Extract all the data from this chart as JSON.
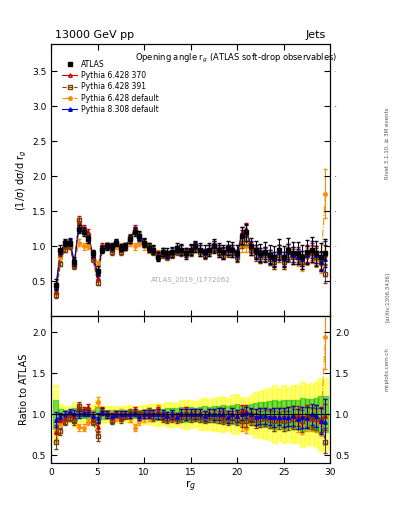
{
  "title_top": "13000 GeV pp",
  "title_right": "Jets",
  "plot_title": "Opening angle r$_g$ (ATLAS soft-drop observables)",
  "xlabel": "r$_g$",
  "ylabel_main": "(1/σ) dσ/d r$_g$",
  "ylabel_ratio": "Ratio to ATLAS",
  "watermark": "ATLAS_2019_I1772062",
  "rivet_text": "Rivet 3.1.10, ≥ 3M events",
  "arxiv_text": "[arXiv:1306.3436]",
  "mcplots_text": "mcplots.cern.ch",
  "x_data": [
    0.5,
    1.0,
    1.5,
    2.0,
    2.5,
    3.0,
    3.5,
    4.0,
    4.5,
    5.0,
    5.5,
    6.0,
    6.5,
    7.0,
    7.5,
    8.0,
    8.5,
    9.0,
    9.5,
    10.0,
    10.5,
    11.0,
    11.5,
    12.0,
    12.5,
    13.0,
    13.5,
    14.0,
    14.5,
    15.0,
    15.5,
    16.0,
    16.5,
    17.0,
    17.5,
    18.0,
    18.5,
    19.0,
    19.5,
    20.0,
    20.5,
    21.0,
    21.5,
    22.0,
    22.5,
    23.0,
    23.5,
    24.0,
    24.5,
    25.0,
    25.5,
    26.0,
    26.5,
    27.0,
    27.5,
    28.0,
    28.5,
    29.0,
    29.5
  ],
  "atlas_y": [
    0.45,
    0.95,
    1.05,
    1.05,
    0.78,
    1.25,
    1.2,
    1.1,
    0.9,
    0.65,
    0.95,
    1.0,
    1.0,
    1.05,
    0.98,
    1.0,
    1.1,
    1.2,
    1.15,
    1.05,
    0.98,
    0.95,
    0.85,
    0.92,
    0.9,
    0.92,
    0.98,
    0.95,
    0.9,
    0.95,
    1.0,
    0.95,
    0.92,
    0.95,
    1.0,
    0.95,
    0.92,
    0.98,
    0.95,
    0.9,
    1.15,
    1.2,
    1.0,
    0.95,
    0.9,
    0.92,
    0.88,
    0.85,
    0.95,
    0.85,
    0.95,
    0.9,
    0.9,
    0.85,
    0.92,
    0.95,
    0.9,
    0.85,
    0.9
  ],
  "atlas_yerr": [
    0.08,
    0.06,
    0.05,
    0.05,
    0.06,
    0.06,
    0.06,
    0.05,
    0.05,
    0.06,
    0.05,
    0.05,
    0.05,
    0.05,
    0.05,
    0.05,
    0.06,
    0.06,
    0.06,
    0.06,
    0.06,
    0.06,
    0.06,
    0.06,
    0.07,
    0.07,
    0.07,
    0.08,
    0.08,
    0.08,
    0.08,
    0.09,
    0.09,
    0.09,
    0.1,
    0.1,
    0.1,
    0.1,
    0.11,
    0.11,
    0.12,
    0.12,
    0.12,
    0.13,
    0.13,
    0.14,
    0.14,
    0.15,
    0.15,
    0.15,
    0.16,
    0.16,
    0.16,
    0.17,
    0.17,
    0.18,
    0.18,
    0.19,
    0.2
  ],
  "p6_370_y": [
    0.35,
    0.9,
    1.0,
    1.05,
    0.75,
    1.35,
    1.25,
    1.2,
    0.85,
    0.55,
    1.0,
    1.0,
    0.95,
    1.05,
    0.95,
    1.0,
    1.1,
    1.25,
    1.15,
    1.05,
    1.0,
    0.95,
    0.88,
    0.9,
    0.88,
    0.9,
    0.95,
    0.95,
    0.92,
    0.95,
    1.0,
    0.95,
    0.9,
    0.95,
    1.0,
    0.95,
    0.9,
    0.95,
    0.95,
    0.88,
    1.2,
    1.25,
    0.98,
    0.92,
    0.88,
    0.9,
    0.85,
    0.82,
    0.92,
    0.82,
    0.92,
    0.88,
    0.88,
    0.82,
    0.9,
    0.92,
    0.88,
    0.8,
    0.88
  ],
  "p6_391_y": [
    0.3,
    0.75,
    0.95,
    1.0,
    0.72,
    1.38,
    1.22,
    1.15,
    0.82,
    0.48,
    0.98,
    1.0,
    0.92,
    1.05,
    0.92,
    0.98,
    1.12,
    1.22,
    1.15,
    1.05,
    1.0,
    0.92,
    0.85,
    0.88,
    0.85,
    0.88,
    0.92,
    0.92,
    0.9,
    0.92,
    0.98,
    0.92,
    0.88,
    0.92,
    0.98,
    0.92,
    0.88,
    0.92,
    0.92,
    0.85,
    1.05,
    1.1,
    0.95,
    0.88,
    0.85,
    0.88,
    0.82,
    0.78,
    0.88,
    0.78,
    0.88,
    0.85,
    0.85,
    0.78,
    0.88,
    0.9,
    0.85,
    0.78,
    0.6
  ],
  "p6_def_y": [
    0.35,
    0.85,
    1.02,
    1.0,
    0.75,
    1.05,
    1.0,
    1.0,
    0.9,
    0.75,
    0.98,
    1.0,
    1.0,
    1.0,
    1.0,
    0.98,
    1.05,
    1.0,
    1.05,
    1.0,
    0.95,
    0.95,
    0.9,
    0.92,
    0.88,
    0.9,
    0.95,
    0.95,
    0.92,
    0.95,
    0.98,
    0.95,
    0.9,
    0.95,
    0.98,
    0.95,
    0.9,
    0.95,
    0.95,
    0.88,
    1.0,
    1.0,
    0.95,
    0.9,
    0.85,
    0.88,
    0.82,
    0.78,
    0.92,
    0.78,
    0.92,
    0.85,
    0.82,
    0.75,
    0.85,
    0.88,
    0.82,
    0.75,
    1.75
  ],
  "p8_308_y": [
    0.42,
    0.92,
    1.05,
    1.08,
    0.78,
    1.25,
    1.22,
    1.12,
    0.88,
    0.62,
    0.98,
    1.0,
    0.98,
    1.05,
    0.98,
    1.0,
    1.1,
    1.22,
    1.12,
    1.05,
    0.98,
    0.95,
    0.85,
    0.92,
    0.88,
    0.92,
    0.95,
    0.95,
    0.9,
    0.95,
    1.0,
    0.95,
    0.9,
    0.95,
    1.0,
    0.95,
    0.92,
    0.95,
    0.95,
    0.88,
    1.15,
    1.22,
    1.0,
    0.92,
    0.88,
    0.9,
    0.85,
    0.82,
    0.92,
    0.82,
    0.92,
    0.88,
    0.85,
    0.82,
    0.88,
    0.95,
    0.88,
    0.78,
    0.82
  ],
  "p6_370_yerr": [
    0.04,
    0.04,
    0.04,
    0.04,
    0.04,
    0.05,
    0.05,
    0.04,
    0.04,
    0.04,
    0.04,
    0.04,
    0.04,
    0.04,
    0.04,
    0.04,
    0.05,
    0.05,
    0.05,
    0.05,
    0.05,
    0.05,
    0.05,
    0.05,
    0.05,
    0.05,
    0.05,
    0.06,
    0.06,
    0.06,
    0.06,
    0.06,
    0.06,
    0.06,
    0.07,
    0.07,
    0.07,
    0.07,
    0.07,
    0.07,
    0.08,
    0.08,
    0.08,
    0.09,
    0.09,
    0.09,
    0.09,
    0.1,
    0.1,
    0.1,
    0.11,
    0.11,
    0.11,
    0.11,
    0.12,
    0.12,
    0.12,
    0.13,
    0.13
  ],
  "p6_391_yerr": [
    0.04,
    0.04,
    0.04,
    0.04,
    0.04,
    0.05,
    0.05,
    0.04,
    0.04,
    0.04,
    0.04,
    0.04,
    0.04,
    0.04,
    0.04,
    0.04,
    0.05,
    0.05,
    0.05,
    0.05,
    0.05,
    0.05,
    0.05,
    0.05,
    0.05,
    0.05,
    0.05,
    0.06,
    0.06,
    0.06,
    0.06,
    0.06,
    0.06,
    0.06,
    0.07,
    0.07,
    0.07,
    0.07,
    0.07,
    0.07,
    0.08,
    0.08,
    0.08,
    0.09,
    0.09,
    0.09,
    0.09,
    0.1,
    0.1,
    0.1,
    0.11,
    0.11,
    0.11,
    0.11,
    0.12,
    0.12,
    0.12,
    0.13,
    0.13
  ],
  "p6_def_yerr": [
    0.04,
    0.04,
    0.04,
    0.04,
    0.04,
    0.05,
    0.05,
    0.04,
    0.04,
    0.04,
    0.04,
    0.04,
    0.04,
    0.04,
    0.04,
    0.04,
    0.05,
    0.05,
    0.05,
    0.05,
    0.05,
    0.05,
    0.05,
    0.05,
    0.05,
    0.05,
    0.05,
    0.06,
    0.06,
    0.06,
    0.06,
    0.06,
    0.06,
    0.06,
    0.07,
    0.07,
    0.07,
    0.07,
    0.07,
    0.07,
    0.08,
    0.08,
    0.08,
    0.09,
    0.09,
    0.09,
    0.09,
    0.1,
    0.1,
    0.1,
    0.11,
    0.11,
    0.11,
    0.11,
    0.12,
    0.12,
    0.12,
    0.13,
    0.35
  ],
  "p8_308_yerr": [
    0.04,
    0.04,
    0.04,
    0.04,
    0.04,
    0.05,
    0.05,
    0.04,
    0.04,
    0.04,
    0.04,
    0.04,
    0.04,
    0.04,
    0.04,
    0.04,
    0.05,
    0.05,
    0.05,
    0.05,
    0.05,
    0.05,
    0.05,
    0.05,
    0.05,
    0.05,
    0.05,
    0.06,
    0.06,
    0.06,
    0.06,
    0.06,
    0.06,
    0.06,
    0.07,
    0.07,
    0.07,
    0.07,
    0.07,
    0.07,
    0.08,
    0.08,
    0.08,
    0.09,
    0.09,
    0.09,
    0.09,
    0.1,
    0.1,
    0.1,
    0.11,
    0.11,
    0.11,
    0.11,
    0.12,
    0.12,
    0.12,
    0.13,
    0.25
  ],
  "ylim_main": [
    0.0,
    3.9
  ],
  "ylim_ratio": [
    0.4,
    2.2
  ],
  "xlim": [
    0,
    30
  ],
  "yticks_main": [
    0.5,
    1.0,
    1.5,
    2.0,
    2.5,
    3.0,
    3.5
  ],
  "yticks_ratio": [
    0.5,
    1.0,
    1.5,
    2.0
  ],
  "xticks": [
    0,
    5,
    10,
    15,
    20,
    25,
    30
  ],
  "color_atlas": "#000000",
  "color_p6_370": "#cc0000",
  "color_p6_391": "#7b3f00",
  "color_p6_def": "#ff8c00",
  "color_p8_308": "#0000cc",
  "band_yellow": "#ffff00",
  "band_green": "#00bb00",
  "band_alpha_y": 0.5,
  "band_alpha_g": 0.5
}
